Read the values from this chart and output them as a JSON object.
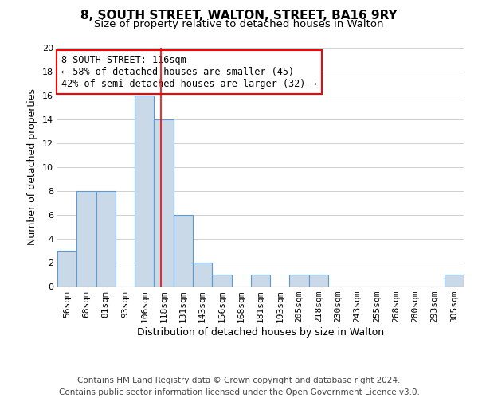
{
  "title": "8, SOUTH STREET, WALTON, STREET, BA16 9RY",
  "subtitle": "Size of property relative to detached houses in Walton",
  "xlabel": "Distribution of detached houses by size in Walton",
  "ylabel": "Number of detached properties",
  "categories": [
    "56sqm",
    "68sqm",
    "81sqm",
    "93sqm",
    "106sqm",
    "118sqm",
    "131sqm",
    "143sqm",
    "156sqm",
    "168sqm",
    "181sqm",
    "193sqm",
    "205sqm",
    "218sqm",
    "230sqm",
    "243sqm",
    "255sqm",
    "268sqm",
    "280sqm",
    "293sqm",
    "305sqm"
  ],
  "values": [
    3,
    8,
    8,
    0,
    16,
    14,
    6,
    2,
    1,
    0,
    1,
    0,
    1,
    1,
    0,
    0,
    0,
    0,
    0,
    0,
    1
  ],
  "bar_color": "#c9d9e8",
  "bar_edge_color": "#5b9bd5",
  "grid_color": "#d0d0d0",
  "red_line_x": 4.85,
  "annotation_text": "8 SOUTH STREET: 116sqm\n← 58% of detached houses are smaller (45)\n42% of semi-detached houses are larger (32) →",
  "annotation_box_color": "white",
  "annotation_box_edge_color": "red",
  "ylim": [
    0,
    20
  ],
  "yticks": [
    0,
    2,
    4,
    6,
    8,
    10,
    12,
    14,
    16,
    18,
    20
  ],
  "footnote": "Contains HM Land Registry data © Crown copyright and database right 2024.\nContains public sector information licensed under the Open Government Licence v3.0.",
  "title_fontsize": 11,
  "subtitle_fontsize": 9.5,
  "xlabel_fontsize": 9,
  "ylabel_fontsize": 9,
  "tick_fontsize": 8,
  "annotation_fontsize": 8.5,
  "footnote_fontsize": 7.5
}
